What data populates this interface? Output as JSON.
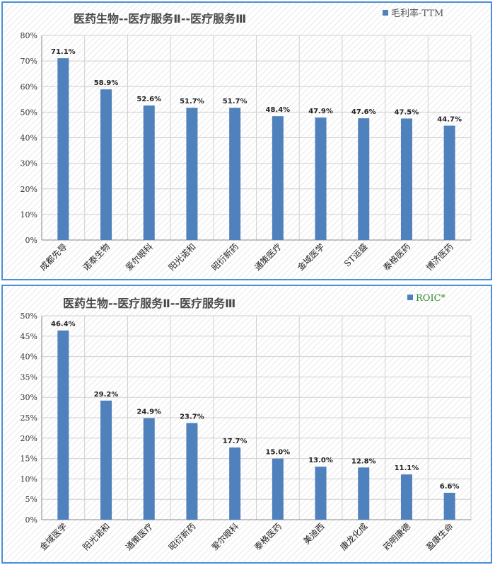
{
  "chart_data": [
    {
      "type": "bar",
      "title": "医药生物--医疗服务Ⅱ--医疗服务Ⅲ",
      "legend": "毛利率-TTM",
      "legend_position": "top-right",
      "legend_color": "#555555",
      "bar_color": "#4f81bd",
      "grid": true,
      "ylim": [
        0,
        80
      ],
      "yticks": [
        "0%",
        "10%",
        "20%",
        "30%",
        "40%",
        "50%",
        "60%",
        "70%",
        "80%"
      ],
      "categories": [
        "成都先导",
        "诺泰生物",
        "爱尔眼科",
        "阳光诺和",
        "昭衍新药",
        "通策医疗",
        "金域医学",
        "ST运盛",
        "泰格医药",
        "博济医药"
      ],
      "values": [
        71.1,
        58.9,
        52.6,
        51.7,
        51.7,
        48.4,
        47.9,
        47.6,
        47.5,
        44.7
      ],
      "labels": [
        "71.1%",
        "58.9%",
        "52.6%",
        "51.7%",
        "51.7%",
        "48.4%",
        "47.9%",
        "47.6%",
        "47.5%",
        "44.7%"
      ]
    },
    {
      "type": "bar",
      "title": "医药生物--医疗服务Ⅱ--医疗服务Ⅲ",
      "legend": "ROIC*",
      "legend_position": "top-right",
      "legend_color": "#2e8b2e",
      "bar_color": "#4f81bd",
      "grid": true,
      "ylim": [
        0,
        50
      ],
      "yticks": [
        "0%",
        "5%",
        "10%",
        "15%",
        "20%",
        "25%",
        "30%",
        "35%",
        "40%",
        "45%",
        "50%"
      ],
      "categories": [
        "金域医学",
        "阳光诺和",
        "通策医疗",
        "昭衍新药",
        "爱尔眼科",
        "泰格医药",
        "美迪西",
        "康龙化成",
        "药明康德",
        "盈康生命"
      ],
      "values": [
        46.4,
        29.2,
        24.9,
        23.7,
        17.7,
        15.0,
        13.0,
        12.8,
        11.1,
        6.6
      ],
      "labels": [
        "46.4%",
        "29.2%",
        "24.9%",
        "23.7%",
        "17.7%",
        "15.0%",
        "13.0%",
        "12.8%",
        "11.1%",
        "6.6%"
      ]
    }
  ]
}
